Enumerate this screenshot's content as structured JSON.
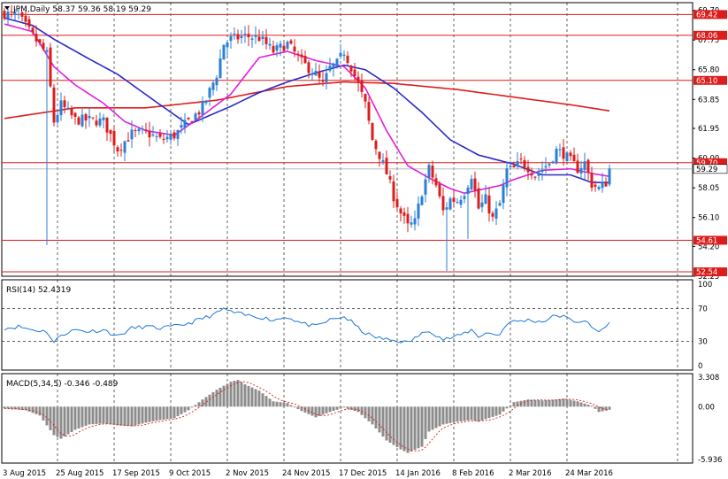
{
  "chart_data": [
    {
      "type": "candlestick",
      "panel": "price",
      "header": "JPM,Daily  58.37 59.36 58.19 59.29",
      "price_ticks": [
        "69.70",
        "67.75",
        "65.80",
        "63.85",
        "61.95",
        "60.00",
        "58.05",
        "56.10",
        "54.20",
        "52.25"
      ],
      "ylim": [
        52.25,
        70.2
      ],
      "levels": [
        {
          "label": "69.42",
          "value": 69.42
        },
        {
          "label": "68.06",
          "value": 68.06
        },
        {
          "label": "65.10",
          "value": 65.1
        },
        {
          "label": "59.70",
          "value": 59.7
        },
        {
          "label": "54.61",
          "value": 54.61
        },
        {
          "label": "52.54",
          "value": 52.54
        }
      ],
      "current_price_label": "59.29",
      "current_price": 59.29,
      "x_labels": [
        "3 Aug 2015",
        "25 Aug 2015",
        "17 Sep 2015",
        "9 Oct 2015",
        "2 Nov 2015",
        "24 Nov 2015",
        "17 Dec 2015",
        "14 Jan 2016",
        "8 Feb 2016",
        "2 Mar 2016",
        "24 Mar 2016"
      ],
      "x_label_bars": [
        0,
        16,
        32,
        48,
        64,
        80,
        96,
        112,
        128,
        144,
        160
      ],
      "bar_count": 172,
      "anchors": [
        [
          0,
          69.5
        ],
        [
          4,
          69.3
        ],
        [
          8,
          68.0
        ],
        [
          12,
          66.8
        ],
        [
          14,
          62.4
        ],
        [
          16,
          63.5
        ],
        [
          20,
          62.5
        ],
        [
          24,
          62.5
        ],
        [
          28,
          62.4
        ],
        [
          32,
          60.6
        ],
        [
          36,
          61.6
        ],
        [
          40,
          61.7
        ],
        [
          44,
          61.2
        ],
        [
          48,
          61.5
        ],
        [
          52,
          62.4
        ],
        [
          56,
          63.3
        ],
        [
          60,
          65.5
        ],
        [
          62,
          67.5
        ],
        [
          64,
          67.8
        ],
        [
          68,
          68.0
        ],
        [
          72,
          67.9
        ],
        [
          76,
          67.0
        ],
        [
          80,
          67.5
        ],
        [
          84,
          66.3
        ],
        [
          88,
          65.5
        ],
        [
          90,
          64.8
        ],
        [
          92,
          65.9
        ],
        [
          94,
          66.2
        ],
        [
          96,
          67.0
        ],
        [
          98,
          66.0
        ],
        [
          100,
          64.8
        ],
        [
          102,
          63.5
        ],
        [
          104,
          61.2
        ],
        [
          106,
          60.2
        ],
        [
          108,
          59.0
        ],
        [
          110,
          57.5
        ],
        [
          112,
          56.4
        ],
        [
          114,
          55.5
        ],
        [
          116,
          55.8
        ],
        [
          118,
          57.8
        ],
        [
          120,
          59.3
        ],
        [
          122,
          58.2
        ],
        [
          124,
          56.5
        ],
        [
          126,
          57.3
        ],
        [
          128,
          57.2
        ],
        [
          130,
          57.8
        ],
        [
          132,
          58.9
        ],
        [
          134,
          56.7
        ],
        [
          136,
          57.3
        ],
        [
          138,
          56.0
        ],
        [
          140,
          57.0
        ],
        [
          142,
          59.2
        ],
        [
          144,
          59.3
        ],
        [
          146,
          59.8
        ],
        [
          148,
          59.4
        ],
        [
          150,
          58.9
        ],
        [
          152,
          59.3
        ],
        [
          154,
          59.7
        ],
        [
          156,
          60.5
        ],
        [
          158,
          60.3
        ],
        [
          160,
          59.8
        ],
        [
          162,
          59.3
        ],
        [
          164,
          59.7
        ],
        [
          166,
          58.3
        ],
        [
          168,
          58.0
        ],
        [
          170,
          58.4
        ],
        [
          171,
          59.29
        ]
      ],
      "moving_averages": [
        {
          "color": "#dd1c1c",
          "period": 200,
          "points": [
            [
              0,
              62.6
            ],
            [
              20,
              63.3
            ],
            [
              40,
              63.3
            ],
            [
              60,
              63.8
            ],
            [
              80,
              64.7
            ],
            [
              96,
              65.0
            ],
            [
              110,
              64.9
            ],
            [
              128,
              64.5
            ],
            [
              144,
              64.0
            ],
            [
              160,
              63.5
            ],
            [
              171,
              63.1
            ]
          ]
        },
        {
          "color": "#2a2ac8",
          "period": 50,
          "points": [
            [
              0,
              69.2
            ],
            [
              8,
              68.7
            ],
            [
              14,
              67.8
            ],
            [
              24,
              66.5
            ],
            [
              32,
              65.5
            ],
            [
              44,
              63.5
            ],
            [
              52,
              62.2
            ],
            [
              56,
              62.6
            ],
            [
              64,
              63.4
            ],
            [
              72,
              64.3
            ],
            [
              80,
              65.0
            ],
            [
              88,
              65.6
            ],
            [
              96,
              66.1
            ],
            [
              102,
              65.8
            ],
            [
              110,
              64.6
            ],
            [
              118,
              63.0
            ],
            [
              126,
              61.2
            ],
            [
              134,
              60.2
            ],
            [
              144,
              59.6
            ],
            [
              152,
              58.9
            ],
            [
              160,
              58.9
            ],
            [
              166,
              58.4
            ],
            [
              171,
              58.4
            ]
          ]
        },
        {
          "color": "#e020d8",
          "period": 20,
          "points": [
            [
              0,
              68.8
            ],
            [
              8,
              68.3
            ],
            [
              14,
              66.0
            ],
            [
              20,
              64.8
            ],
            [
              28,
              63.6
            ],
            [
              34,
              62.4
            ],
            [
              40,
              61.8
            ],
            [
              48,
              61.5
            ],
            [
              56,
              62.8
            ],
            [
              64,
              64.2
            ],
            [
              72,
              66.6
            ],
            [
              80,
              67.0
            ],
            [
              88,
              66.4
            ],
            [
              96,
              66.0
            ],
            [
              102,
              64.6
            ],
            [
              108,
              61.8
            ],
            [
              114,
              59.5
            ],
            [
              120,
              58.7
            ],
            [
              126,
              58.0
            ],
            [
              130,
              57.7
            ],
            [
              134,
              57.9
            ],
            [
              140,
              58.2
            ],
            [
              144,
              58.6
            ],
            [
              152,
              59.2
            ],
            [
              160,
              59.3
            ],
            [
              166,
              59.0
            ],
            [
              171,
              58.8
            ]
          ]
        }
      ],
      "extra_lows": [
        [
          12,
          54.3
        ],
        [
          125,
          52.6
        ],
        [
          131,
          54.7
        ]
      ]
    },
    {
      "type": "line",
      "panel": "rsi",
      "header": "RSI(14) 52.4319",
      "value": 52.4319,
      "ylim": [
        0,
        100
      ],
      "ticks": [
        "100",
        "70",
        "30",
        "0"
      ],
      "levels": [
        70,
        30
      ],
      "color": "#1e78d7",
      "anchors": [
        [
          0,
          46
        ],
        [
          4,
          48
        ],
        [
          8,
          44
        ],
        [
          12,
          42
        ],
        [
          14,
          28
        ],
        [
          16,
          38
        ],
        [
          20,
          44
        ],
        [
          24,
          42
        ],
        [
          28,
          44
        ],
        [
          32,
          36
        ],
        [
          36,
          46
        ],
        [
          40,
          48
        ],
        [
          44,
          46
        ],
        [
          48,
          48
        ],
        [
          52,
          52
        ],
        [
          56,
          58
        ],
        [
          60,
          64
        ],
        [
          62,
          70
        ],
        [
          64,
          66
        ],
        [
          68,
          62
        ],
        [
          72,
          60
        ],
        [
          76,
          56
        ],
        [
          80,
          60
        ],
        [
          84,
          52
        ],
        [
          88,
          48
        ],
        [
          92,
          56
        ],
        [
          96,
          60
        ],
        [
          98,
          54
        ],
        [
          100,
          46
        ],
        [
          102,
          40
        ],
        [
          104,
          36
        ],
        [
          108,
          32
        ],
        [
          112,
          30
        ],
        [
          114,
          28
        ],
        [
          116,
          34
        ],
        [
          120,
          44
        ],
        [
          122,
          38
        ],
        [
          124,
          32
        ],
        [
          128,
          36
        ],
        [
          130,
          40
        ],
        [
          132,
          44
        ],
        [
          134,
          36
        ],
        [
          136,
          40
        ],
        [
          140,
          38
        ],
        [
          142,
          52
        ],
        [
          144,
          54
        ],
        [
          148,
          56
        ],
        [
          152,
          54
        ],
        [
          154,
          58
        ],
        [
          156,
          62
        ],
        [
          158,
          60
        ],
        [
          160,
          56
        ],
        [
          162,
          54
        ],
        [
          164,
          56
        ],
        [
          166,
          46
        ],
        [
          168,
          42
        ],
        [
          170,
          48
        ],
        [
          171,
          52
        ]
      ]
    },
    {
      "type": "bar",
      "panel": "macd",
      "header": "MACD(5,34,5) -0.346 -0.489",
      "macd": -0.346,
      "signal": -0.489,
      "ylim": [
        -5.936,
        3.308
      ],
      "ticks": [
        "3.308",
        "0.00",
        "-5.936"
      ],
      "bar_color": "#8c8c8c",
      "signal_color": "#dd1c1c",
      "anchors": [
        [
          0,
          -0.2
        ],
        [
          6,
          -0.4
        ],
        [
          10,
          -1.0
        ],
        [
          14,
          -3.2
        ],
        [
          16,
          -3.6
        ],
        [
          20,
          -2.6
        ],
        [
          24,
          -2.0
        ],
        [
          28,
          -1.9
        ],
        [
          32,
          -2.1
        ],
        [
          36,
          -2.2
        ],
        [
          40,
          -1.8
        ],
        [
          44,
          -1.5
        ],
        [
          48,
          -1.3
        ],
        [
          52,
          -0.4
        ],
        [
          56,
          0.8
        ],
        [
          60,
          1.9
        ],
        [
          64,
          2.8
        ],
        [
          66,
          3.0
        ],
        [
          68,
          2.5
        ],
        [
          72,
          1.8
        ],
        [
          76,
          0.6
        ],
        [
          80,
          0.4
        ],
        [
          84,
          -0.5
        ],
        [
          88,
          -1.2
        ],
        [
          92,
          -0.6
        ],
        [
          96,
          -0.1
        ],
        [
          100,
          -0.6
        ],
        [
          104,
          -2.0
        ],
        [
          108,
          -3.8
        ],
        [
          112,
          -4.8
        ],
        [
          114,
          -5.2
        ],
        [
          118,
          -4.5
        ],
        [
          120,
          -2.8
        ],
        [
          124,
          -2.0
        ],
        [
          128,
          -1.7
        ],
        [
          132,
          -1.5
        ],
        [
          134,
          -1.7
        ],
        [
          136,
          -1.4
        ],
        [
          140,
          -0.9
        ],
        [
          142,
          -0.2
        ],
        [
          144,
          0.5
        ],
        [
          148,
          0.8
        ],
        [
          152,
          0.7
        ],
        [
          156,
          0.8
        ],
        [
          158,
          0.9
        ],
        [
          162,
          0.6
        ],
        [
          166,
          0.1
        ],
        [
          168,
          -0.6
        ],
        [
          171,
          -0.35
        ]
      ]
    }
  ]
}
